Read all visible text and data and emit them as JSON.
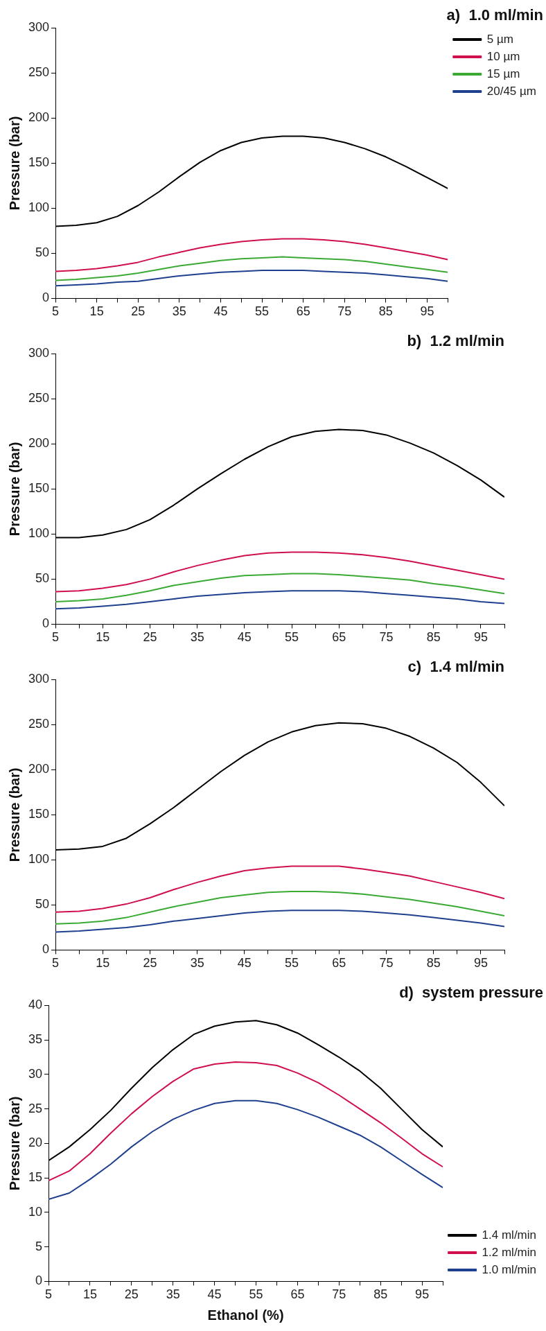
{
  "chart_data": [
    {
      "type": "line",
      "title": "a)  1.0 ml/min",
      "ylabel": "Pressure (bar)",
      "x": [
        5,
        10,
        15,
        20,
        25,
        30,
        35,
        40,
        45,
        50,
        55,
        60,
        65,
        70,
        75,
        80,
        85,
        90,
        95,
        100
      ],
      "xlim": [
        5,
        100
      ],
      "xticks": [
        5,
        15,
        25,
        35,
        45,
        55,
        65,
        75,
        85,
        95,
        {
          "value": 10,
          "label": null
        },
        {
          "value": 20,
          "label": null
        },
        {
          "value": 30,
          "label": null
        },
        {
          "value": 40,
          "label": null
        },
        {
          "value": 50,
          "label": null
        },
        {
          "value": 60,
          "label": null
        },
        {
          "value": 70,
          "label": null
        },
        {
          "value": 80,
          "label": null
        },
        {
          "value": 90,
          "label": null
        },
        {
          "value": 100,
          "label": null
        }
      ],
      "ylim": [
        0,
        300
      ],
      "yticks": [
        0,
        50,
        100,
        150,
        200,
        250,
        300
      ],
      "legend": "top right",
      "grid": false,
      "series": [
        {
          "name": "5 µm",
          "color": "#000000",
          "values": [
            80,
            81,
            84,
            91,
            103,
            118,
            135,
            151,
            164,
            173,
            178,
            180,
            180,
            178,
            173,
            166,
            157,
            146,
            134,
            122
          ]
        },
        {
          "name": "10 µm",
          "color": "#d0104c",
          "values": [
            30,
            31,
            33,
            36,
            40,
            46,
            51,
            56,
            60,
            63,
            65,
            66,
            66,
            65,
            63,
            60,
            56,
            52,
            48,
            43
          ]
        },
        {
          "name": "15 µm",
          "color": "#3aaa35",
          "values": [
            20,
            21,
            23,
            25,
            28,
            32,
            36,
            39,
            42,
            44,
            45,
            46,
            45,
            44,
            43,
            41,
            38,
            35,
            32,
            29
          ]
        },
        {
          "name": "20/45 µm",
          "color": "#1f3f8f",
          "values": [
            14,
            15,
            16,
            18,
            19,
            22,
            25,
            27,
            29,
            30,
            31,
            31,
            31,
            30,
            29,
            28,
            26,
            24,
            22,
            19
          ]
        }
      ]
    },
    {
      "type": "line",
      "title": "b)  1.2 ml/min",
      "ylabel": "Pressure (bar)",
      "x": [
        5,
        10,
        15,
        20,
        25,
        30,
        35,
        40,
        45,
        50,
        55,
        60,
        65,
        70,
        75,
        80,
        85,
        90,
        95,
        100
      ],
      "xlim": [
        5,
        100
      ],
      "xticks": [
        5,
        15,
        25,
        35,
        45,
        55,
        65,
        75,
        85,
        95,
        {
          "value": 10,
          "label": null
        },
        {
          "value": 20,
          "label": null
        },
        {
          "value": 30,
          "label": null
        },
        {
          "value": 40,
          "label": null
        },
        {
          "value": 50,
          "label": null
        },
        {
          "value": 60,
          "label": null
        },
        {
          "value": 70,
          "label": null
        },
        {
          "value": 80,
          "label": null
        },
        {
          "value": 90,
          "label": null
        },
        {
          "value": 100,
          "label": null
        }
      ],
      "ylim": [
        0,
        300
      ],
      "yticks": [
        0,
        50,
        100,
        150,
        200,
        250,
        300
      ],
      "grid": false,
      "series": [
        {
          "color": "#000000",
          "values": [
            96,
            96,
            99,
            105,
            116,
            132,
            150,
            167,
            183,
            197,
            208,
            214,
            216,
            215,
            210,
            201,
            190,
            176,
            160,
            141
          ]
        },
        {
          "color": "#d0104c",
          "values": [
            36,
            37,
            40,
            44,
            50,
            58,
            65,
            71,
            76,
            79,
            80,
            80,
            79,
            77,
            74,
            70,
            65,
            60,
            55,
            50
          ]
        },
        {
          "color": "#3aaa35",
          "values": [
            25,
            26,
            28,
            32,
            37,
            43,
            47,
            51,
            54,
            55,
            56,
            56,
            55,
            53,
            51,
            49,
            45,
            42,
            38,
            34
          ]
        },
        {
          "color": "#1f3f8f",
          "values": [
            17,
            18,
            20,
            22,
            25,
            28,
            31,
            33,
            35,
            36,
            37,
            37,
            37,
            36,
            34,
            32,
            30,
            28,
            25,
            23
          ]
        }
      ]
    },
    {
      "type": "line",
      "title": "c)  1.4 ml/min",
      "ylabel": "Pressure (bar)",
      "x": [
        5,
        10,
        15,
        20,
        25,
        30,
        35,
        40,
        45,
        50,
        55,
        60,
        65,
        70,
        75,
        80,
        85,
        90,
        95,
        100
      ],
      "xlim": [
        5,
        100
      ],
      "xticks": [
        5,
        15,
        25,
        35,
        45,
        55,
        65,
        75,
        85,
        95,
        {
          "value": 10,
          "label": null
        },
        {
          "value": 20,
          "label": null
        },
        {
          "value": 30,
          "label": null
        },
        {
          "value": 40,
          "label": null
        },
        {
          "value": 50,
          "label": null
        },
        {
          "value": 60,
          "label": null
        },
        {
          "value": 70,
          "label": null
        },
        {
          "value": 80,
          "label": null
        },
        {
          "value": 90,
          "label": null
        },
        {
          "value": 100,
          "label": null
        }
      ],
      "ylim": [
        0,
        300
      ],
      "yticks": [
        0,
        50,
        100,
        150,
        200,
        250,
        300
      ],
      "grid": false,
      "series": [
        {
          "color": "#000000",
          "values": [
            111,
            112,
            115,
            124,
            140,
            158,
            178,
            198,
            216,
            231,
            242,
            249,
            252,
            251,
            246,
            237,
            224,
            208,
            186,
            160
          ]
        },
        {
          "color": "#d0104c",
          "values": [
            42,
            43,
            46,
            51,
            58,
            67,
            75,
            82,
            88,
            91,
            93,
            93,
            93,
            90,
            86,
            82,
            76,
            70,
            64,
            57
          ]
        },
        {
          "color": "#3aaa35",
          "values": [
            29,
            30,
            32,
            36,
            42,
            48,
            53,
            58,
            61,
            64,
            65,
            65,
            64,
            62,
            59,
            56,
            52,
            48,
            43,
            38
          ]
        },
        {
          "color": "#1f3f8f",
          "values": [
            20,
            21,
            23,
            25,
            28,
            32,
            35,
            38,
            41,
            43,
            44,
            44,
            44,
            43,
            41,
            39,
            36,
            33,
            30,
            26
          ]
        }
      ]
    },
    {
      "type": "line",
      "title": "d)  system pressure",
      "xlabel": "Ethanol (%)",
      "ylabel": "Pressure (bar)",
      "x": [
        5,
        10,
        15,
        20,
        25,
        30,
        35,
        40,
        45,
        50,
        55,
        60,
        65,
        70,
        75,
        80,
        85,
        90,
        95,
        100
      ],
      "xlim": [
        5,
        100
      ],
      "xticks": [
        5,
        15,
        25,
        35,
        45,
        55,
        65,
        75,
        85,
        95,
        {
          "value": 10,
          "label": null
        },
        {
          "value": 20,
          "label": null
        },
        {
          "value": 30,
          "label": null
        },
        {
          "value": 40,
          "label": null
        },
        {
          "value": 50,
          "label": null
        },
        {
          "value": 60,
          "label": null
        },
        {
          "value": 70,
          "label": null
        },
        {
          "value": 80,
          "label": null
        },
        {
          "value": 90,
          "label": null
        },
        {
          "value": 100,
          "label": null
        }
      ],
      "ylim": [
        0,
        40
      ],
      "yticks": [
        0,
        5,
        10,
        15,
        20,
        25,
        30,
        35,
        40
      ],
      "legend": "bottom right",
      "grid": false,
      "series": [
        {
          "name": "1.4 ml/min",
          "color": "#000000",
          "values": [
            17.5,
            19.5,
            22,
            24.8,
            28,
            31,
            33.6,
            35.8,
            37,
            37.6,
            37.8,
            37.2,
            36,
            34.3,
            32.5,
            30.5,
            28,
            25,
            22,
            19.5
          ]
        },
        {
          "name": "1.2 ml/min",
          "color": "#d0104c",
          "values": [
            14.6,
            16,
            18.5,
            21.5,
            24.3,
            26.8,
            29,
            30.8,
            31.5,
            31.8,
            31.7,
            31.3,
            30.2,
            28.8,
            27,
            25,
            23,
            20.8,
            18.5,
            16.6
          ]
        },
        {
          "name": "1.0 ml/min",
          "color": "#1f3f8f",
          "values": [
            11.9,
            12.8,
            14.8,
            17,
            19.5,
            21.7,
            23.5,
            24.8,
            25.8,
            26.2,
            26.2,
            25.8,
            24.9,
            23.8,
            22.5,
            21.2,
            19.5,
            17.5,
            15.5,
            13.6
          ]
        }
      ]
    }
  ]
}
